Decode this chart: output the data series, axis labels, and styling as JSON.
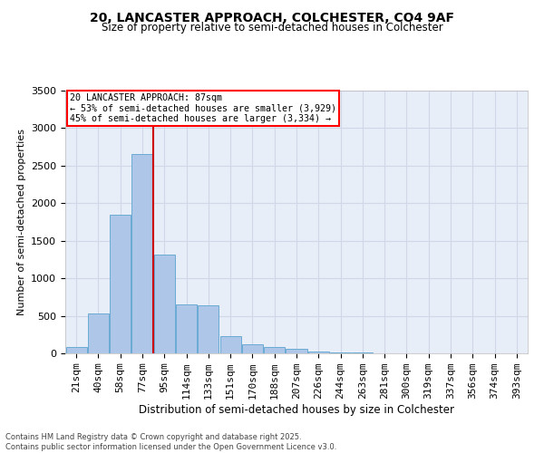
{
  "title1": "20, LANCASTER APPROACH, COLCHESTER, CO4 9AF",
  "title2": "Size of property relative to semi-detached houses in Colchester",
  "xlabel": "Distribution of semi-detached houses by size in Colchester",
  "ylabel": "Number of semi-detached properties",
  "footnote": "Contains HM Land Registry data © Crown copyright and database right 2025.\nContains public sector information licensed under the Open Government Licence v3.0.",
  "categories": [
    "21sqm",
    "40sqm",
    "58sqm",
    "77sqm",
    "95sqm",
    "114sqm",
    "133sqm",
    "151sqm",
    "170sqm",
    "188sqm",
    "207sqm",
    "226sqm",
    "244sqm",
    "263sqm",
    "281sqm",
    "300sqm",
    "319sqm",
    "337sqm",
    "356sqm",
    "374sqm",
    "393sqm"
  ],
  "values": [
    80,
    530,
    1850,
    2650,
    1320,
    650,
    640,
    230,
    120,
    85,
    55,
    30,
    15,
    8,
    5,
    3,
    2,
    1,
    1,
    0,
    0
  ],
  "bar_color": "#aec6e8",
  "bar_edge_color": "#6aaad4",
  "vline_color": "#cc0000",
  "ylim": [
    0,
    3500
  ],
  "yticks": [
    0,
    500,
    1000,
    1500,
    2000,
    2500,
    3000,
    3500
  ],
  "annotation_title": "20 LANCASTER APPROACH: 87sqm",
  "annotation_line1": "← 53% of semi-detached houses are smaller (3,929)",
  "annotation_line2": "45% of semi-detached houses are larger (3,334) →",
  "grid_color": "#d0d8e8",
  "background_color": "#e8eef8",
  "title1_fontsize": 10,
  "title2_fontsize": 8.5,
  "xlabel_fontsize": 8.5,
  "ylabel_fontsize": 8,
  "tick_fontsize": 8,
  "annot_fontsize": 7.2,
  "footnote_fontsize": 6
}
